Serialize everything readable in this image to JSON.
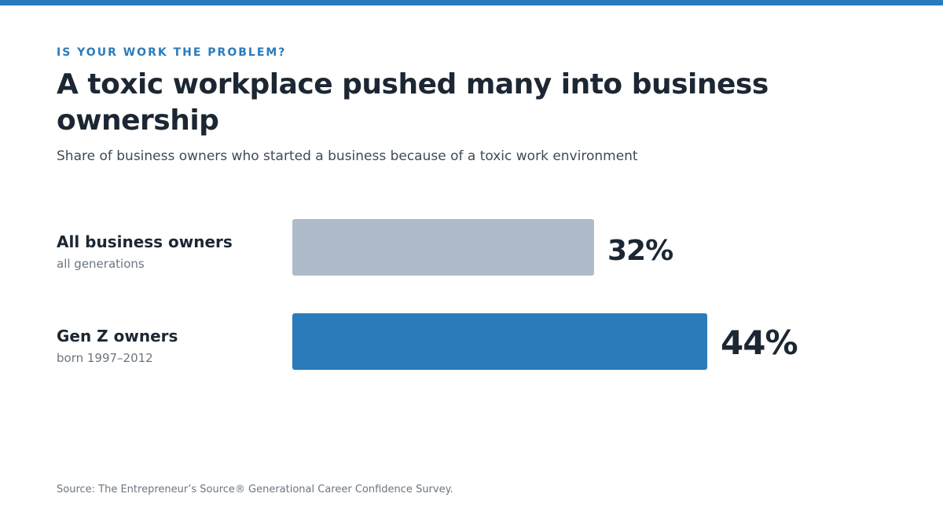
{
  "header": {
    "kicker": "IS YOUR WORK THE PROBLEM?",
    "title": "A toxic workplace pushed many into business ownership",
    "subtitle": "Share of business owners who started a business because of a toxic work environment"
  },
  "footer": {
    "source": "Source: The Entrepreneur’s Source® Generational Career Confidence Survey."
  },
  "colors": {
    "accent": "#2b7bbb",
    "bar_all": "#afbbc8",
    "bar_genz": "#2b7bbb",
    "text_dark": "#1c2733",
    "text_muted": "#6b7580"
  },
  "chart_data": {
    "type": "bar",
    "orientation": "horizontal",
    "title": "A toxic workplace pushed many into business ownership",
    "subtitle": "Share of business owners who started a business because of a toxic work environment",
    "categories": [
      "All business owners",
      "Gen Z owners"
    ],
    "category_sublabels": [
      "all generations",
      "born 1997–2012"
    ],
    "values": [
      32,
      44
    ],
    "value_labels": [
      "32%",
      "44%"
    ],
    "unit": "%",
    "xlim": [
      0,
      44
    ],
    "grid": false,
    "legend": "none"
  }
}
